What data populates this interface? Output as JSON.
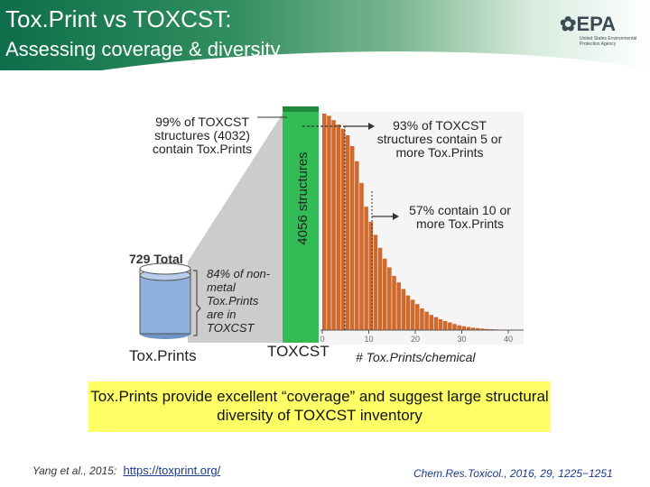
{
  "header": {
    "title": "Tox.Print vs TOXCST:",
    "subtitle": "Assessing coverage & diversity"
  },
  "logo": {
    "mark": "EPA",
    "text": "United States Environmental Protection Agency",
    "icon": "epa-flower-icon"
  },
  "left": {
    "total_label": "729 Total",
    "coverage_note": "84% of non-metal Tox.Prints are in TOXCST",
    "axis_label": "Tox.Prints"
  },
  "middle": {
    "top_note": "99% of TOXCST structures (4032) contain Tox.Prints",
    "bar_label": "4056 structures",
    "axis_label": "TOXCST"
  },
  "right": {
    "note_top": "93% of TOXCST structures contain 5 or more Tox.Prints",
    "note_mid": "57% contain 10 or more Tox.Prints",
    "x_label": "# Tox.Prints/chemical"
  },
  "banner": {
    "text": "Tox.Prints provide excellent “coverage” and suggest large structural diversity of TOXCST inventory"
  },
  "footer": {
    "citation": "Yang et al., 2015:",
    "link": "https://toxprint.org/",
    "journal": "Chem.Res.Toxicol., 2016, 29, 1225−1251"
  },
  "chart_data": {
    "type": "bar",
    "xlabel": "# Tox.Prints/chemical",
    "ylabel": "",
    "x_ticks": [
      0,
      10,
      20,
      30,
      40
    ],
    "xlim": [
      0,
      40
    ],
    "x": [
      1,
      2,
      3,
      4,
      5,
      6,
      7,
      8,
      9,
      10,
      11,
      12,
      13,
      14,
      15,
      16,
      17,
      18,
      19,
      20,
      21,
      22,
      23,
      24,
      25,
      26,
      27,
      28,
      29,
      30,
      31,
      32,
      33,
      34,
      35,
      36,
      37,
      38,
      39,
      40
    ],
    "values": [
      1.0,
      0.99,
      0.97,
      0.95,
      0.93,
      0.9,
      0.85,
      0.78,
      0.68,
      0.57,
      0.5,
      0.44,
      0.38,
      0.33,
      0.29,
      0.25,
      0.22,
      0.19,
      0.16,
      0.14,
      0.12,
      0.1,
      0.085,
      0.07,
      0.06,
      0.05,
      0.042,
      0.035,
      0.028,
      0.022,
      0.018,
      0.014,
      0.011,
      0.009,
      0.007,
      0.005,
      0.004,
      0.003,
      0.002,
      0.001
    ],
    "color": "#d2692c"
  }
}
